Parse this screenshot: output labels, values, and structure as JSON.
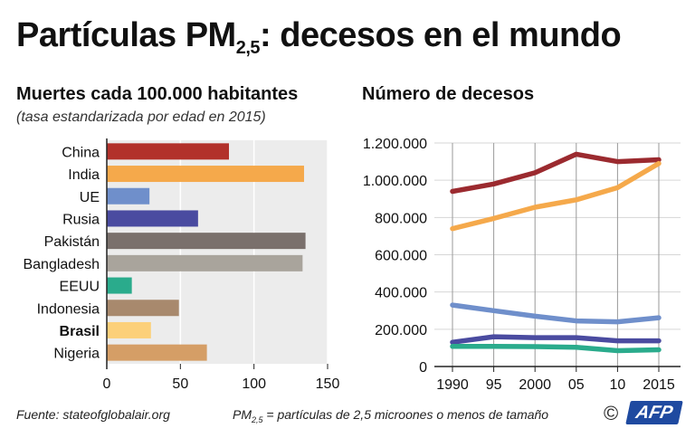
{
  "title": {
    "main": "Partículas PM",
    "sub": "2,5",
    "rest": ": decesos en el mundo"
  },
  "left": {
    "subtitle": "Muertes cada 100.000 habitantes",
    "note": "(tasa estandarizada por edad en 2015)"
  },
  "right": {
    "subtitle": "Número de decesos"
  },
  "footer": {
    "source": "Fuente: stateofglobalair.org",
    "def_pm": "PM",
    "def_sub": "2,5",
    "def_rest": " = partículas de 2,5 microones o menos de tamaño",
    "copyright": "©",
    "logo": "AFP"
  },
  "chart_data": [
    {
      "type": "bar",
      "orientation": "horizontal",
      "title": "Muertes cada 100.000 habitantes",
      "categories": [
        "China",
        "India",
        "UE",
        "Rusia",
        "Pakistán",
        "Bangladesh",
        "EEUU",
        "Indonesia",
        "Brasil",
        "Nigeria"
      ],
      "values": [
        83,
        134,
        29,
        62,
        135,
        133,
        17,
        49,
        30,
        68
      ],
      "colors": [
        "#b2312b",
        "#f5a94b",
        "#6f8fcb",
        "#4a4ba0",
        "#7a706c",
        "#a9a49c",
        "#2aab8c",
        "#a8896d",
        "#fcd07a",
        "#d59e66"
      ],
      "bold_category": "Brasil",
      "xlim": [
        0,
        150
      ],
      "xticks": [
        0,
        50,
        100,
        150
      ]
    },
    {
      "type": "line",
      "title": "Número de decesos",
      "x": [
        1990,
        1995,
        2000,
        2005,
        2010,
        2015
      ],
      "xtick_labels": [
        "1990",
        "95",
        "2000",
        "05",
        "10",
        "2015"
      ],
      "ylim": [
        0,
        1200000
      ],
      "yticks": [
        0,
        200000,
        400000,
        600000,
        800000,
        1000000,
        1200000
      ],
      "ytick_labels": [
        "0",
        "200.000",
        "400.000",
        "600.000",
        "800.000",
        "1.000.000",
        "1.200.000"
      ],
      "series": [
        {
          "name": "China",
          "color": "#9b2a2f",
          "values": [
            940000,
            980000,
            1040000,
            1140000,
            1100000,
            1110000
          ]
        },
        {
          "name": "India",
          "color": "#f5a94b",
          "values": [
            740000,
            795000,
            855000,
            895000,
            960000,
            1090000
          ]
        },
        {
          "name": "UE",
          "color": "#6f8fcb",
          "values": [
            330000,
            300000,
            270000,
            245000,
            240000,
            262000
          ]
        },
        {
          "name": "Rusia",
          "color": "#4a4ba0",
          "values": [
            130000,
            160000,
            155000,
            155000,
            138000,
            138000
          ]
        },
        {
          "name": "EEUU",
          "color": "#2aab8c",
          "values": [
            108000,
            108000,
            107000,
            103000,
            85000,
            90000
          ]
        }
      ]
    }
  ]
}
